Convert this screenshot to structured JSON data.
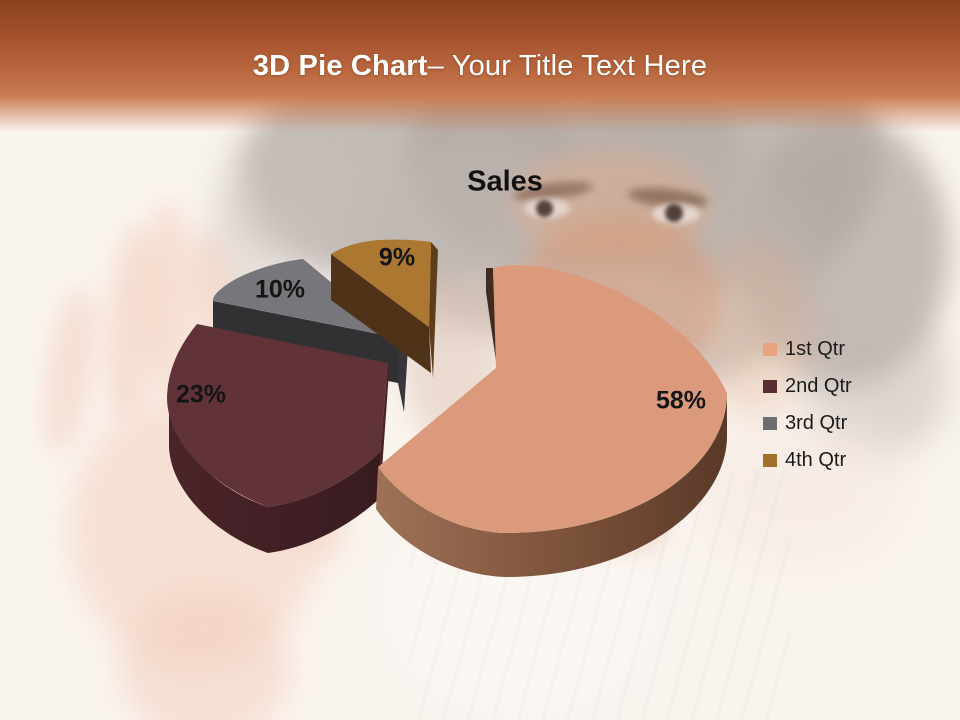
{
  "slide": {
    "header_title_bold": "3D Pie Chart",
    "header_title_rest": "– Your Title Text Here"
  },
  "chart_data": {
    "type": "pie",
    "style": "3d-exploded",
    "title": "Sales",
    "legend_position": "right",
    "slices": [
      {
        "name": "1st Qtr",
        "value": 58,
        "label": "58%",
        "color": "#DA9A7B",
        "legend_color": "#E8A37F"
      },
      {
        "name": "2nd Qtr",
        "value": 23,
        "label": "23%",
        "color": "#613238",
        "legend_color": "#5A2D31"
      },
      {
        "name": "3rd Qtr",
        "value": 10,
        "label": "10%",
        "color": "#77767A",
        "legend_color": "#6D6C6E"
      },
      {
        "name": "4th Qtr",
        "value": 9,
        "label": "9%",
        "color": "#AC7730",
        "legend_color": "#A3702B"
      }
    ]
  },
  "theme": {
    "header_gradient_top": "#8A421E",
    "header_gradient_mid": "#C0703F",
    "background": "#FAF4EF"
  }
}
